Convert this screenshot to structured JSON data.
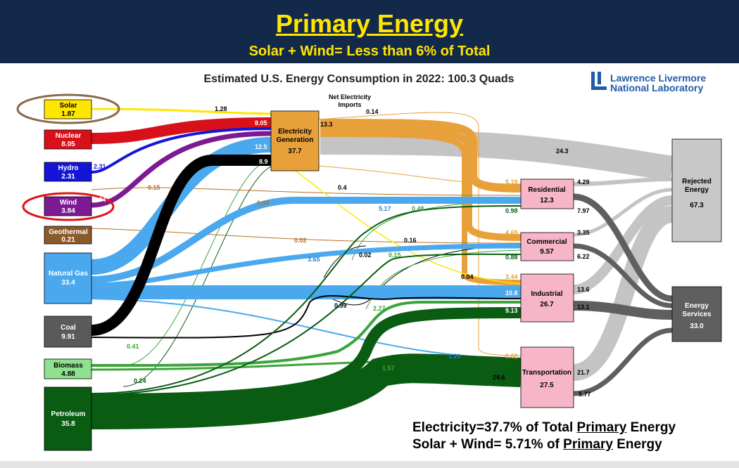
{
  "header": {
    "title": "Primary Energy",
    "subtitle": "Solar + Wind= Less than 6% of Total"
  },
  "chart": {
    "title": "Estimated U.S. Energy Consumption in 2022: 100.3 Quads",
    "logo_line1": "Lawrence Livermore",
    "logo_line2": "National Laboratory",
    "imports_label_line1": "Net Electricity",
    "imports_label_line2": "Imports"
  },
  "sources": [
    {
      "name": "Solar",
      "value": "1.87",
      "color": "#ffe600",
      "text": "#000000"
    },
    {
      "name": "Nuclear",
      "value": "8.05",
      "color": "#d8101a",
      "text": "#ffffff"
    },
    {
      "name": "Hydro",
      "value": "2.31",
      "color": "#1515d8",
      "text": "#ffffff"
    },
    {
      "name": "Wind",
      "value": "3.84",
      "color": "#7d1a93",
      "text": "#ffffff"
    },
    {
      "name": "Geothermal",
      "value": "0.21",
      "color": "#8a5a2b",
      "text": "#ffffff"
    },
    {
      "name": "Natural Gas",
      "value": "33.4",
      "color": "#4aa8ee",
      "text": "#ffffff"
    },
    {
      "name": "Coal",
      "value": "9.91",
      "color": "#5a5a5a",
      "text": "#ffffff"
    },
    {
      "name": "Biomass",
      "value": "4.88",
      "color": "#8fe08f",
      "text": "#000000"
    },
    {
      "name": "Petroleum",
      "value": "35.8",
      "color": "#0a5c12",
      "text": "#ffffff"
    }
  ],
  "electricity": {
    "name_line1": "Electricity",
    "name_line2": "Generation",
    "value": "37.7",
    "color": "#e8a13a"
  },
  "sectors": [
    {
      "name": "Residential",
      "value": "12.3",
      "color": "#f7b6c8"
    },
    {
      "name": "Commercial",
      "value": "9.57",
      "color": "#f7b6c8"
    },
    {
      "name": "Industrial",
      "value": "26.7",
      "color": "#f7b6c8"
    },
    {
      "name": "Transportation",
      "value": "27.5",
      "color": "#f7b6c8"
    }
  ],
  "outputs": [
    {
      "name_line1": "Rejected",
      "name_line2": "Energy",
      "value": "67.3",
      "color": "#c8c8c8"
    },
    {
      "name_line1": "Energy",
      "name_line2": "Services",
      "value": "33.0",
      "color": "#5f5f5f"
    }
  ],
  "flow_labels": [
    {
      "text": "1.28",
      "color": "#000000"
    },
    {
      "text": "8.05",
      "color": "#ffffff"
    },
    {
      "text": "12.5",
      "color": "#ffffff"
    },
    {
      "text": "8.9",
      "color": "#ffffff"
    },
    {
      "text": "2.31",
      "color": "#1515d8"
    },
    {
      "text": "3.84",
      "color": "#ffffff"
    },
    {
      "text": "0.14",
      "color": "#000000"
    },
    {
      "text": "13.3",
      "color": "#000000"
    },
    {
      "text": "24.3",
      "color": "#000000"
    },
    {
      "text": "0.15",
      "color": "#b4702a"
    },
    {
      "text": "0.04",
      "color": "#b4702a"
    },
    {
      "text": "0.4",
      "color": "#000000"
    },
    {
      "text": "5.17",
      "color": "#2a7fd0"
    },
    {
      "text": "0.48",
      "color": "#3aa53a"
    },
    {
      "text": "5.19",
      "color": "#e8a13a"
    },
    {
      "text": "4.29",
      "color": "#000000"
    },
    {
      "text": "0.98",
      "color": "#0a5c12"
    },
    {
      "text": "7.97",
      "color": "#000000"
    },
    {
      "text": "0.02",
      "color": "#b4702a"
    },
    {
      "text": "0.16",
      "color": "#000000"
    },
    {
      "text": "4.69",
      "color": "#e8a13a"
    },
    {
      "text": "3.35",
      "color": "#000000"
    },
    {
      "text": "3.65",
      "color": "#2a7fd0"
    },
    {
      "text": "0.02",
      "color": "#000000"
    },
    {
      "text": "0.15",
      "color": "#3aa53a"
    },
    {
      "text": "0.88",
      "color": "#0a5c12"
    },
    {
      "text": "6.22",
      "color": "#000000"
    },
    {
      "text": "3.44",
      "color": "#e8a13a"
    },
    {
      "text": "0.04",
      "color": "#000000"
    },
    {
      "text": "10.8",
      "color": "#ffffff"
    },
    {
      "text": "13.6",
      "color": "#000000"
    },
    {
      "text": "0.99",
      "color": "#000000"
    },
    {
      "text": "2.27",
      "color": "#3aa53a"
    },
    {
      "text": "9.13",
      "color": "#ffffff"
    },
    {
      "text": "13.1",
      "color": "#000000"
    },
    {
      "text": "0.41",
      "color": "#3aa53a"
    },
    {
      "text": "1.29",
      "color": "#2a7fd0"
    },
    {
      "text": "0.02",
      "color": "#e8a13a"
    },
    {
      "text": "1.57",
      "color": "#3aa53a"
    },
    {
      "text": "21.7",
      "color": "#000000"
    },
    {
      "text": "0.24",
      "color": "#0a5c12"
    },
    {
      "text": "24.6",
      "color": "#000000"
    },
    {
      "text": "5.77",
      "color": "#000000"
    }
  ],
  "footnote": {
    "line1_prefix": "Electricity=37.7% of Total ",
    "line1_underline": "Primary",
    "line1_suffix": " Energy",
    "line2_prefix": "Solar + Wind= 5.71% of ",
    "line2_underline": "Primary",
    "line2_suffix": " Energy"
  }
}
